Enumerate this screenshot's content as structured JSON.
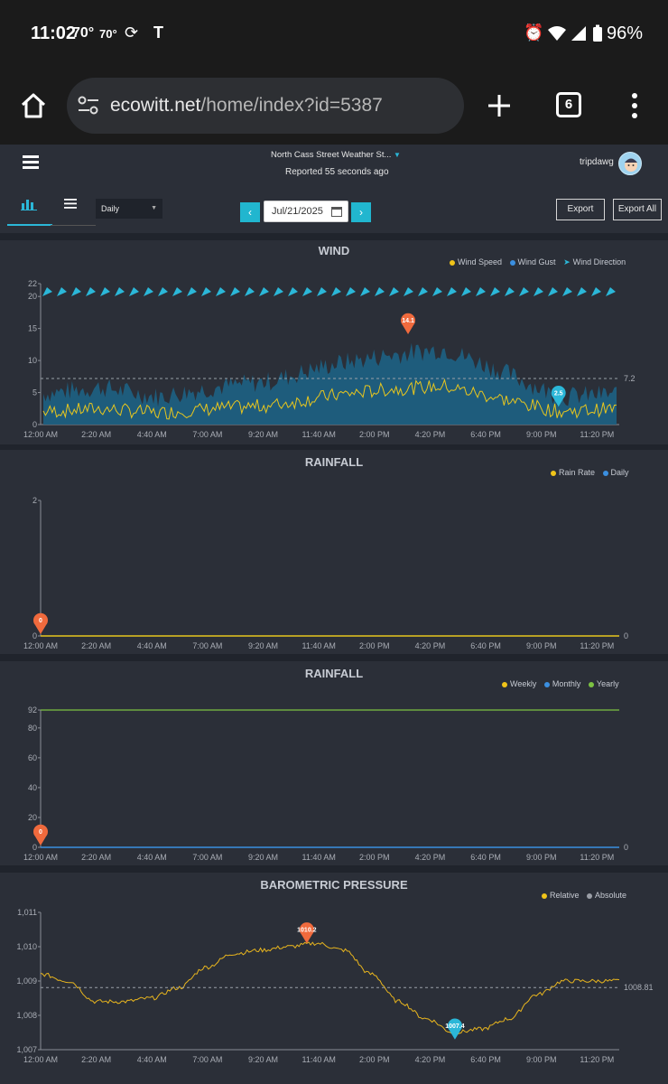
{
  "status_bar": {
    "time": "11:02",
    "temp1": "70°",
    "temp2": "70°",
    "carrier": "T",
    "battery": "96%"
  },
  "browser": {
    "url_host": "ecowitt.net",
    "url_path": "/home/index?id=5387",
    "tab_count": "6"
  },
  "header": {
    "station": "North Cass Street Weather St...",
    "reported": "Reported 55 seconds ago",
    "user": "tripdawg"
  },
  "toolbar": {
    "period": "Daily",
    "date": "Jul/21/2025",
    "export": "Export",
    "export_all": "Export All"
  },
  "x_ticks": [
    "12:00 AM",
    "2:20 AM",
    "4:40 AM",
    "7:00 AM",
    "9:20 AM",
    "11:40 AM",
    "2:00 PM",
    "4:20 PM",
    "6:40 PM",
    "9:00 PM",
    "11:20 PM"
  ],
  "chart_data": [
    {
      "type": "area",
      "title": "WIND",
      "legend": [
        "Wind Speed",
        "Wind Gust",
        "Wind Direction"
      ],
      "y_ticks": [
        "0",
        "5",
        "10",
        "15",
        "20",
        "22"
      ],
      "ylim": [
        0,
        22
      ],
      "reference_line": "7.2",
      "max_marker": "14.1",
      "min_marker": "2.5",
      "gust_profile": [
        {
          "x": "12:00 AM",
          "y": 4.5
        },
        {
          "x": "2:20 AM",
          "y": 5.5
        },
        {
          "x": "4:40 AM",
          "y": 4.0
        },
        {
          "x": "7:00 AM",
          "y": 5.5
        },
        {
          "x": "9:20 AM",
          "y": 6.5
        },
        {
          "x": "11:40 AM",
          "y": 9.0
        },
        {
          "x": "2:00 PM",
          "y": 10.5
        },
        {
          "x": "4:20 PM",
          "y": 11.5
        },
        {
          "x": "6:40 PM",
          "y": 8.0
        },
        {
          "x": "9:00 PM",
          "y": 4.0
        },
        {
          "x": "11:20 PM",
          "y": 4.5
        }
      ],
      "speed_profile": [
        {
          "x": "12:00 AM",
          "y": 2.0
        },
        {
          "x": "2:20 AM",
          "y": 2.5
        },
        {
          "x": "4:40 AM",
          "y": 1.8
        },
        {
          "x": "7:00 AM",
          "y": 2.5
        },
        {
          "x": "9:20 AM",
          "y": 3.0
        },
        {
          "x": "11:40 AM",
          "y": 4.5
        },
        {
          "x": "2:00 PM",
          "y": 5.5
        },
        {
          "x": "4:20 PM",
          "y": 6.0
        },
        {
          "x": "6:40 PM",
          "y": 4.0
        },
        {
          "x": "9:00 PM",
          "y": 2.0
        },
        {
          "x": "11:20 PM",
          "y": 2.5
        }
      ]
    },
    {
      "type": "line",
      "title": "RAINFALL",
      "legend": [
        "Rain Rate",
        "Daily"
      ],
      "y_ticks": [
        "0",
        "2"
      ],
      "ylim": [
        0,
        2
      ],
      "right_value": "0",
      "max_marker": "0",
      "series": [
        {
          "name": "Rain Rate",
          "values": [
            0,
            0,
            0,
            0,
            0,
            0,
            0,
            0,
            0,
            0,
            0
          ]
        }
      ]
    },
    {
      "type": "line",
      "title": "RAINFALL",
      "legend": [
        "Weekly",
        "Monthly",
        "Yearly"
      ],
      "y_ticks": [
        "0",
        "20",
        "40",
        "60",
        "80",
        "92"
      ],
      "ylim": [
        0,
        92
      ],
      "right_value": "0",
      "max_marker": "0",
      "yearly_level": 92,
      "series": [
        {
          "name": "Weekly",
          "values": [
            0,
            0,
            0,
            0,
            0,
            0,
            0,
            0,
            0,
            0,
            0
          ]
        }
      ]
    },
    {
      "type": "line",
      "title": "BAROMETRIC PRESSURE",
      "legend": [
        "Relative",
        "Absolute"
      ],
      "y_ticks": [
        "1,007",
        "1,008",
        "1,009",
        "1,010",
        "1,011"
      ],
      "ylim": [
        1007,
        1011
      ],
      "reference_line": "1008.81",
      "max_marker": "1010.2",
      "min_marker": "1007.4",
      "series": [
        {
          "name": "Relative",
          "x": [
            "12:00 AM",
            "1:10 AM",
            "2:20 AM",
            "3:30 AM",
            "4:40 AM",
            "5:50 AM",
            "7:00 AM",
            "8:10 AM",
            "9:20 AM",
            "10:30 AM",
            "11:40 AM",
            "12:50 PM",
            "2:00 PM",
            "3:10 PM",
            "4:20 PM",
            "5:30 PM",
            "6:40 PM",
            "7:50 PM",
            "9:00 PM",
            "10:10 PM",
            "11:20 PM",
            "11:59 PM"
          ],
          "values": [
            1009.2,
            1009.0,
            1008.4,
            1008.4,
            1008.5,
            1008.8,
            1009.4,
            1009.8,
            1009.9,
            1010.0,
            1010.1,
            1009.9,
            1009.2,
            1008.4,
            1007.9,
            1007.5,
            1007.6,
            1007.9,
            1008.6,
            1009.0,
            1009.0,
            1009.0
          ]
        }
      ]
    }
  ]
}
